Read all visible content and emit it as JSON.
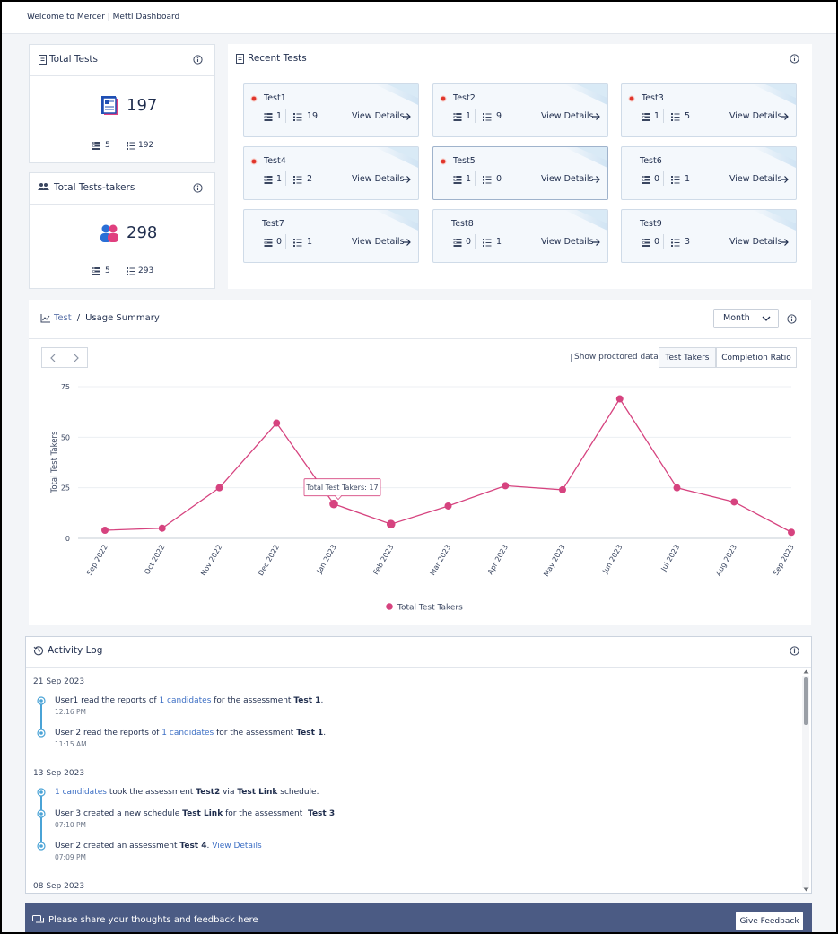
{
  "header": {
    "title": "Welcome to Mercer | Mettl Dashboard"
  },
  "summary_cards": [
    {
      "title": "Total Tests",
      "total": 197,
      "stats": [
        5,
        192
      ]
    },
    {
      "title": "Total Tests-takers",
      "total": 298,
      "stats": [
        5,
        293
      ]
    }
  ],
  "recent_tests": {
    "title": "Recent Tests",
    "view_label": "View Details",
    "tests": [
      {
        "name": "Test1",
        "live": true,
        "counts": [
          1,
          19
        ]
      },
      {
        "name": "Test2",
        "live": true,
        "counts": [
          1,
          9
        ]
      },
      {
        "name": "Test3",
        "live": true,
        "counts": [
          1,
          5
        ]
      },
      {
        "name": "Test4",
        "live": true,
        "counts": [
          1,
          2
        ]
      },
      {
        "name": "Test5",
        "live": true,
        "counts": [
          1,
          0
        ]
      },
      {
        "name": "Test6",
        "live": false,
        "counts": [
          0,
          1
        ]
      },
      {
        "name": "Test7",
        "live": false,
        "counts": [
          0,
          1
        ]
      },
      {
        "name": "Test8",
        "live": false,
        "counts": [
          0,
          1
        ]
      },
      {
        "name": "Test9",
        "live": false,
        "counts": [
          0,
          3
        ]
      }
    ]
  },
  "usage": {
    "breadcrumb": [
      "Test",
      "/",
      "Usage Summary"
    ],
    "period": "Month",
    "toggle": "Show proctored data",
    "tabs": [
      "Test Takers",
      "Completion Ratio"
    ]
  },
  "chart_data": {
    "type": "line",
    "y_label": "Total Test Takers",
    "categories": [
      "Sep 2022",
      "Oct 2022",
      "Nov 2022",
      "Dec 2022",
      "Jan 2023",
      "Feb 2023",
      "Mar 2023",
      "Apr 2023",
      "May 2023",
      "Jun 2023",
      "Jul 2023",
      "Aug 2023",
      "Sep 2023"
    ],
    "series": [
      {
        "name": "Total Test Takers",
        "color": "#d6437f",
        "values": [
          4,
          5,
          25,
          57,
          17,
          7,
          16,
          26,
          24,
          69,
          25,
          18,
          3
        ]
      }
    ],
    "ylim": [
      0,
      75
    ],
    "yticks": [
      0,
      25,
      50,
      75
    ],
    "grid": true,
    "tooltip": "Total Test Takers: 17"
  },
  "activity_log": {
    "title": "Activity Log",
    "days": [
      {
        "date": "21 Sep 2023",
        "entries": [
          {
            "parts": [
              {
                "text": "User1 read the reports of "
              },
              {
                "text": "1 candidates",
                "style": "link"
              },
              {
                "text": " for the assessment "
              },
              {
                "text": "Test 1",
                "style": "bold"
              },
              {
                "text": "."
              }
            ],
            "time": "12:16 PM"
          },
          {
            "parts": [
              {
                "text": "User 2 read the reports of "
              },
              {
                "text": "1 candidates",
                "style": "link"
              },
              {
                "text": " for the assessment "
              },
              {
                "text": "Test 1",
                "style": "bold"
              },
              {
                "text": "."
              }
            ],
            "time": "11:15 AM"
          }
        ]
      },
      {
        "date": "13 Sep 2023",
        "entries": [
          {
            "parts": [
              {
                "text": "1 candidates",
                "style": "link"
              },
              {
                "text": " took the assessment "
              },
              {
                "text": "Test2",
                "style": "bold"
              },
              {
                "text": " via "
              },
              {
                "text": "Test Link",
                "style": "bold"
              },
              {
                "text": " schedule."
              }
            ]
          },
          {
            "parts": [
              {
                "text": "User 3 created a new schedule "
              },
              {
                "text": "Test Link",
                "style": "bold"
              },
              {
                "text": " for the assessment  "
              },
              {
                "text": "Test 3",
                "style": "bold"
              },
              {
                "text": "."
              }
            ],
            "time": "07:10 PM"
          },
          {
            "parts": [
              {
                "text": "User 2 created an assessment "
              },
              {
                "text": "Test 4",
                "style": "bold"
              },
              {
                "text": ". "
              },
              {
                "text": "View Details",
                "style": "link"
              }
            ],
            "time": "07:09 PM"
          }
        ]
      },
      {
        "date": "08 Sep 2023",
        "entries": []
      }
    ]
  },
  "feedback": {
    "message": "Please share your thoughts and feedback here",
    "button": "Give Feedback"
  }
}
